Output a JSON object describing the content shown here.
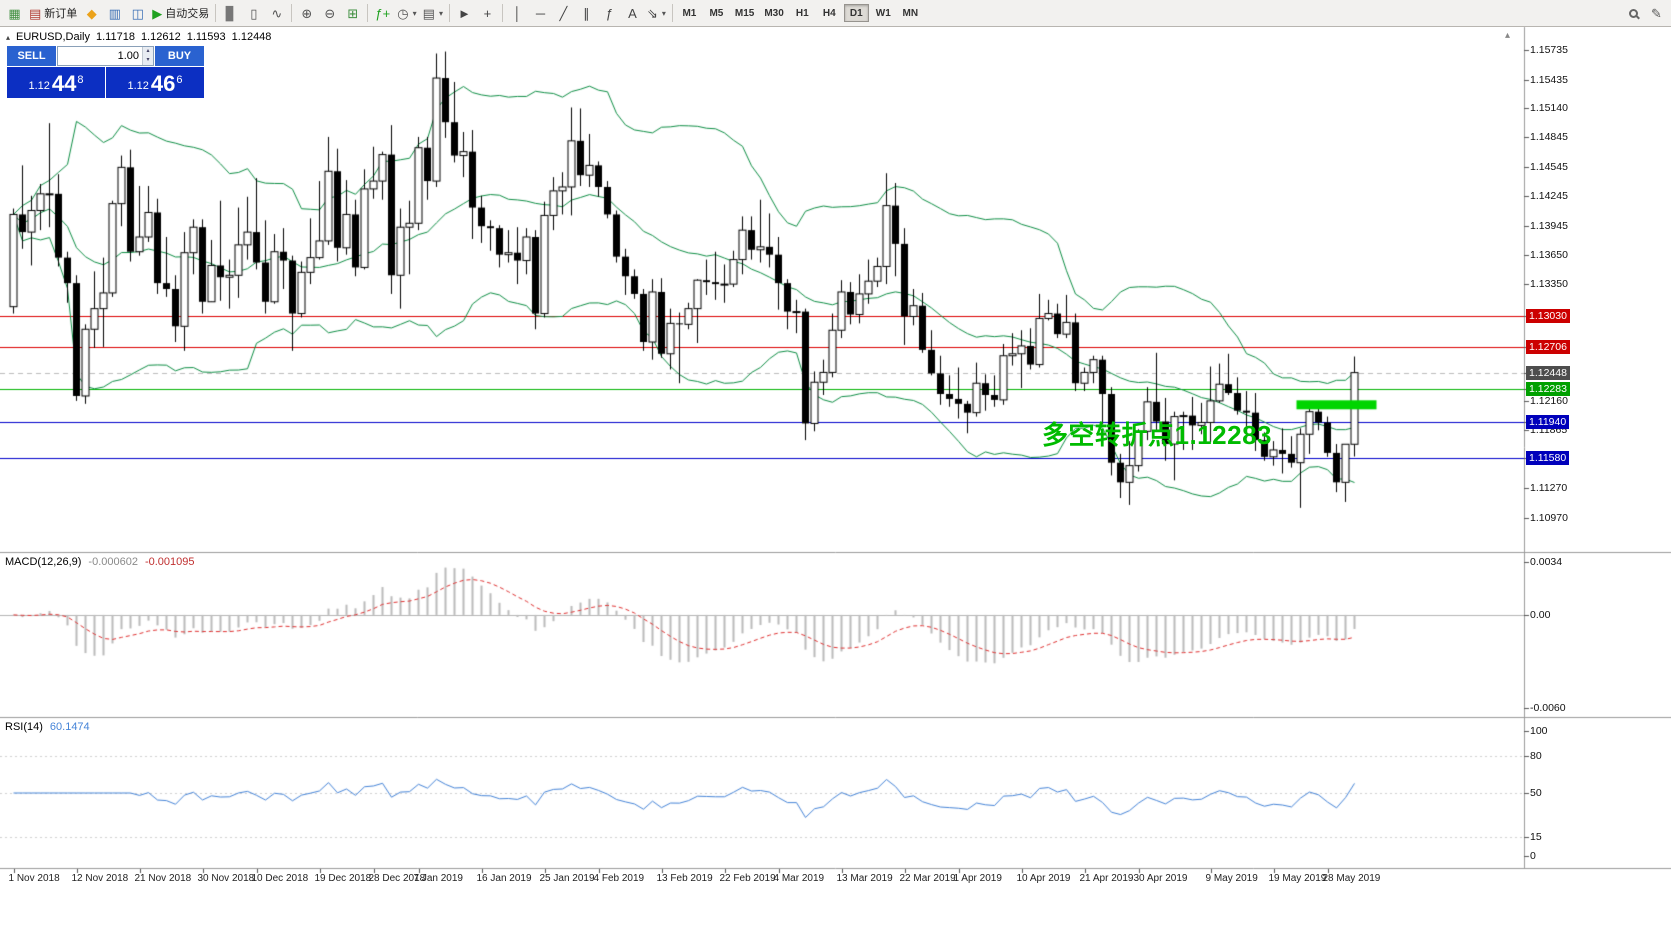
{
  "toolbar": {
    "items": [
      {
        "name": "chart-window-button",
        "glyph": "▦",
        "color": "#3f8f3f"
      },
      {
        "name": "new-order-button",
        "glyph": "▤",
        "color": "#b0392f",
        "label": "新订单"
      },
      {
        "name": "metaeditor-button",
        "glyph": "◆",
        "color": "#eba21a"
      },
      {
        "name": "market-watch-button",
        "glyph": "▥",
        "color": "#3a6fb5"
      },
      {
        "name": "navigator-button",
        "glyph": "◫",
        "color": "#3a6fb5"
      },
      {
        "name": "autotrading-button",
        "glyph": "▶",
        "color": "#1fa11f",
        "label": "自动交易"
      },
      {
        "sep": true
      },
      {
        "name": "bar-chart-button",
        "glyph": "▊",
        "color": "#777777"
      },
      {
        "name": "candlestick-chart-button",
        "glyph": "▯",
        "color": "#555555"
      },
      {
        "name": "line-chart-button",
        "glyph": "∿",
        "color": "#555555"
      },
      {
        "sep": true
      },
      {
        "name": "zoom-in-button",
        "glyph": "⊕",
        "color": "#555555"
      },
      {
        "name": "zoom-out-button",
        "glyph": "⊖",
        "color": "#555555"
      },
      {
        "name": "tile-windows-button",
        "glyph": "⊞",
        "color": "#3f8f3f"
      },
      {
        "sep": true
      },
      {
        "name": "indicators-button",
        "glyph": "ƒ+",
        "color": "#1fa11f"
      },
      {
        "name": "periods-button",
        "glyph": "◷",
        "color": "#555555",
        "caret": true
      },
      {
        "name": "templates-button",
        "glyph": "▤",
        "color": "#555555",
        "caret": true
      },
      {
        "sep": true
      },
      {
        "name": "cursor-button",
        "glyph": "►",
        "color": "#444444"
      },
      {
        "name": "crosshair-button",
        "glyph": "+",
        "color": "#444444"
      },
      {
        "sep": true
      },
      {
        "name": "vertical-line-button",
        "glyph": "│",
        "color": "#444444"
      },
      {
        "name": "horizontal-line-button",
        "glyph": "─",
        "color": "#444444"
      },
      {
        "name": "trendline-button",
        "glyph": "╱",
        "color": "#444444"
      },
      {
        "name": "channel-button",
        "glyph": "∥",
        "color": "#444444"
      },
      {
        "name": "fibonacci-button",
        "glyph": "ƒ",
        "color": "#444444"
      },
      {
        "name": "text-button",
        "glyph": "A",
        "color": "#444444"
      },
      {
        "name": "arrows-button",
        "glyph": "⇘",
        "color": "#444444",
        "caret": true
      },
      {
        "sep": true
      }
    ],
    "timeframes": [
      {
        "label": "M1"
      },
      {
        "label": "M5"
      },
      {
        "label": "M15"
      },
      {
        "label": "M30"
      },
      {
        "label": "H1"
      },
      {
        "label": "H4"
      },
      {
        "label": "D1",
        "active": true
      },
      {
        "label": "W1"
      },
      {
        "label": "MN"
      }
    ]
  },
  "chart": {
    "symbol_line": {
      "symbol": "EURUSD,Daily",
      "open": "1.11718",
      "high": "1.12612",
      "low": "1.11593",
      "close": "1.12448"
    },
    "trade_panel": {
      "sell_label": "SELL",
      "buy_label": "BUY",
      "volume": "1.00",
      "bid": {
        "base": "1.12",
        "big": "44",
        "sup": "8"
      },
      "ask": {
        "base": "1.12",
        "big": "46",
        "sup": "6"
      }
    },
    "annotation": {
      "text": "多空转折点1.12283",
      "color": "#00bb00"
    },
    "price_ticks": [
      "1.15735",
      "1.15435",
      "1.15140",
      "1.14845",
      "1.14545",
      "1.14245",
      "1.13945",
      "1.13650",
      "1.13350",
      "1.12160",
      "1.11865",
      "1.11270",
      "1.10970"
    ],
    "hlines": [
      {
        "price": 1.1303,
        "label": "1.13030",
        "line_color": "#dd0000",
        "box_color": "#cc0000"
      },
      {
        "price": 1.12706,
        "label": "1.12706",
        "line_color": "#dd0000",
        "box_color": "#cc0000"
      },
      {
        "price": 1.12448,
        "label": "1.12448",
        "line_color": "#bbbbbb",
        "box_color": "#4d4d4d",
        "dashed": true
      },
      {
        "price": 1.12283,
        "label": "1.12283",
        "line_color": "#00b300",
        "box_color": "#00a000"
      },
      {
        "price": 1.1194,
        "label": "1.11940",
        "line_color": "#0000cc",
        "box_color": "#0000bb"
      },
      {
        "price": 1.1158,
        "label": "1.11580",
        "line_color": "#0000cc",
        "box_color": "#0000bb"
      }
    ],
    "highlight_bar": {
      "price": 1.1212,
      "from_index": 143,
      "to_index": 151,
      "color": "#00d500",
      "thickness": 9
    }
  },
  "macd_panel": {
    "title": "MACD(12,26,9)",
    "value_main": "-0.000602",
    "value_signal": "-0.001095",
    "ticks": [
      {
        "v": 0.0034,
        "label": "0.0034"
      },
      {
        "v": 0,
        "label": "0.00"
      },
      {
        "v": -0.006,
        "label": "-0.0060"
      }
    ]
  },
  "rsi_panel": {
    "title": "RSI(14)",
    "value": "60.1474",
    "ticks": [
      {
        "v": 100,
        "label": "100"
      },
      {
        "v": 80,
        "label": "80"
      },
      {
        "v": 50,
        "label": "50"
      },
      {
        "v": 15,
        "label": "15"
      },
      {
        "v": 0,
        "label": "0"
      }
    ],
    "levels": [
      80,
      50,
      15
    ]
  },
  "date_axis": [
    {
      "i": 0,
      "label": "1 Nov 2018"
    },
    {
      "i": 7,
      "label": "12 Nov 2018"
    },
    {
      "i": 14,
      "label": "21 Nov 2018"
    },
    {
      "i": 21,
      "label": "30 Nov 2018"
    },
    {
      "i": 27,
      "label": "10 Dec 2018"
    },
    {
      "i": 34,
      "label": "19 Dec 2018"
    },
    {
      "i": 40,
      "label": "28 Dec 2018"
    },
    {
      "i": 45,
      "label": "7 Jan 2019"
    },
    {
      "i": 52,
      "label": "16 Jan 2019"
    },
    {
      "i": 59,
      "label": "25 Jan 2019"
    },
    {
      "i": 65,
      "label": "4 Feb 2019"
    },
    {
      "i": 72,
      "label": "13 Feb 2019"
    },
    {
      "i": 79,
      "label": "22 Feb 2019"
    },
    {
      "i": 85,
      "label": "4 Mar 2019"
    },
    {
      "i": 92,
      "label": "13 Mar 2019"
    },
    {
      "i": 99,
      "label": "22 Mar 2019"
    },
    {
      "i": 105,
      "label": "1 Apr 2019"
    },
    {
      "i": 112,
      "label": "10 Apr 2019"
    },
    {
      "i": 119,
      "label": "21 Apr 2019"
    },
    {
      "i": 125,
      "label": "30 Apr 2019"
    },
    {
      "i": 133,
      "label": "9 May 2019"
    },
    {
      "i": 140,
      "label": "19 May 2019"
    },
    {
      "i": 146,
      "label": "28 May 2019"
    }
  ],
  "chart_data": {
    "type": "candlestick",
    "symbol": "EURUSD",
    "timeframe": "Daily",
    "ohlc_current": {
      "open": 1.11718,
      "high": 1.12612,
      "low": 1.11593,
      "close": 1.12448
    },
    "indicators": [
      {
        "name": "Bollinger Bands",
        "period": 20,
        "deviation": 2,
        "color": "#0d8e44"
      },
      {
        "name": "MACD",
        "fast": 12,
        "slow": 26,
        "signal": 9,
        "main_value": -0.000602,
        "signal_value": -0.001095
      },
      {
        "name": "RSI",
        "period": 14,
        "value": 60.1474
      }
    ],
    "horizontal_levels": [
      1.1303,
      1.12706,
      1.12283,
      1.1194,
      1.1158
    ],
    "candles": [
      [
        1.1312,
        1.1412,
        1.1305,
        1.1406
      ],
      [
        1.1406,
        1.1456,
        1.1371,
        1.1388
      ],
      [
        1.1388,
        1.1425,
        1.1354,
        1.141
      ],
      [
        1.141,
        1.1437,
        1.139,
        1.1427
      ],
      [
        1.1427,
        1.1499,
        1.1393,
        1.1427
      ],
      [
        1.1427,
        1.1447,
        1.1353,
        1.1362
      ],
      [
        1.1362,
        1.1368,
        1.1316,
        1.1336
      ],
      [
        1.1336,
        1.1344,
        1.1216,
        1.1221
      ],
      [
        1.1221,
        1.1294,
        1.1213,
        1.1289
      ],
      [
        1.1289,
        1.1348,
        1.127,
        1.131
      ],
      [
        1.131,
        1.1362,
        1.1271,
        1.1326
      ],
      [
        1.1326,
        1.142,
        1.1322,
        1.1417
      ],
      [
        1.1417,
        1.1466,
        1.1394,
        1.1454
      ],
      [
        1.1454,
        1.1472,
        1.1358,
        1.1368
      ],
      [
        1.1368,
        1.1435,
        1.1364,
        1.1383
      ],
      [
        1.1383,
        1.1435,
        1.1378,
        1.1408
      ],
      [
        1.1408,
        1.1422,
        1.1325,
        1.1336
      ],
      [
        1.1336,
        1.1383,
        1.1322,
        1.133
      ],
      [
        1.133,
        1.1344,
        1.1276,
        1.1292
      ],
      [
        1.1292,
        1.1388,
        1.1267,
        1.1367
      ],
      [
        1.1367,
        1.1401,
        1.1345,
        1.1393
      ],
      [
        1.1393,
        1.1401,
        1.1305,
        1.1317
      ],
      [
        1.1317,
        1.138,
        1.1317,
        1.1354
      ],
      [
        1.1354,
        1.142,
        1.1318,
        1.1342
      ],
      [
        1.1342,
        1.136,
        1.131,
        1.1344
      ],
      [
        1.1344,
        1.1413,
        1.1321,
        1.1375
      ],
      [
        1.1375,
        1.1424,
        1.136,
        1.1388
      ],
      [
        1.1388,
        1.1443,
        1.135,
        1.1357
      ],
      [
        1.1357,
        1.14,
        1.1305,
        1.1317
      ],
      [
        1.1317,
        1.1386,
        1.1315,
        1.1368
      ],
      [
        1.1368,
        1.1392,
        1.133,
        1.1359
      ],
      [
        1.1359,
        1.1364,
        1.1267,
        1.1305
      ],
      [
        1.1305,
        1.1358,
        1.1301,
        1.1347
      ],
      [
        1.1347,
        1.1402,
        1.1335,
        1.1362
      ],
      [
        1.1362,
        1.144,
        1.136,
        1.1379
      ],
      [
        1.1379,
        1.1485,
        1.1375,
        1.145
      ],
      [
        1.145,
        1.1473,
        1.1358,
        1.1372
      ],
      [
        1.1372,
        1.1441,
        1.1365,
        1.1406
      ],
      [
        1.1406,
        1.1421,
        1.1343,
        1.1352
      ],
      [
        1.1352,
        1.1452,
        1.135,
        1.1432
      ],
      [
        1.1432,
        1.1475,
        1.1422,
        1.144
      ],
      [
        1.144,
        1.147,
        1.1421,
        1.1467
      ],
      [
        1.1467,
        1.1497,
        1.1325,
        1.1344
      ],
      [
        1.1344,
        1.1412,
        1.131,
        1.1393
      ],
      [
        1.1393,
        1.142,
        1.1345,
        1.1397
      ],
      [
        1.1397,
        1.1485,
        1.139,
        1.1474
      ],
      [
        1.1474,
        1.1485,
        1.1421,
        1.144
      ],
      [
        1.144,
        1.157,
        1.1434,
        1.1545
      ],
      [
        1.1545,
        1.1572,
        1.1484,
        1.15
      ],
      [
        1.15,
        1.1541,
        1.1459,
        1.1466
      ],
      [
        1.1466,
        1.149,
        1.1444,
        1.147
      ],
      [
        1.147,
        1.1492,
        1.1381,
        1.1413
      ],
      [
        1.1413,
        1.1425,
        1.1377,
        1.1394
      ],
      [
        1.1394,
        1.14,
        1.1369,
        1.1392
      ],
      [
        1.1392,
        1.1395,
        1.1352,
        1.1365
      ],
      [
        1.1365,
        1.139,
        1.1357,
        1.1367
      ],
      [
        1.1367,
        1.1393,
        1.1335,
        1.1359
      ],
      [
        1.1359,
        1.1392,
        1.1345,
        1.1383
      ],
      [
        1.1383,
        1.139,
        1.1289,
        1.1305
      ],
      [
        1.1305,
        1.1419,
        1.1301,
        1.1405
      ],
      [
        1.1405,
        1.1444,
        1.139,
        1.143
      ],
      [
        1.143,
        1.1449,
        1.1406,
        1.1434
      ],
      [
        1.1434,
        1.1515,
        1.1405,
        1.1481
      ],
      [
        1.1481,
        1.1514,
        1.1435,
        1.1446
      ],
      [
        1.1446,
        1.1488,
        1.1434,
        1.1456
      ],
      [
        1.1456,
        1.146,
        1.1424,
        1.1434
      ],
      [
        1.1434,
        1.144,
        1.1402,
        1.1406
      ],
      [
        1.1406,
        1.141,
        1.1357,
        1.1363
      ],
      [
        1.1363,
        1.1371,
        1.1324,
        1.1343
      ],
      [
        1.1343,
        1.135,
        1.132,
        1.1325
      ],
      [
        1.1325,
        1.133,
        1.1267,
        1.1276
      ],
      [
        1.1276,
        1.134,
        1.1258,
        1.1327
      ],
      [
        1.1327,
        1.1341,
        1.126,
        1.1264
      ],
      [
        1.1264,
        1.131,
        1.1248,
        1.1295
      ],
      [
        1.1295,
        1.1306,
        1.1234,
        1.1294
      ],
      [
        1.1294,
        1.1316,
        1.1289,
        1.131
      ],
      [
        1.131,
        1.134,
        1.1275,
        1.1339
      ],
      [
        1.1339,
        1.136,
        1.1324,
        1.1337
      ],
      [
        1.1337,
        1.1368,
        1.1319,
        1.1335
      ],
      [
        1.1335,
        1.1355,
        1.1316,
        1.1335
      ],
      [
        1.1335,
        1.1369,
        1.1332,
        1.136
      ],
      [
        1.136,
        1.1404,
        1.1345,
        1.139
      ],
      [
        1.139,
        1.1404,
        1.136,
        1.137
      ],
      [
        1.137,
        1.1421,
        1.1357,
        1.1373
      ],
      [
        1.1373,
        1.1407,
        1.1352,
        1.1365
      ],
      [
        1.1365,
        1.1383,
        1.1309,
        1.1336
      ],
      [
        1.1336,
        1.134,
        1.1289,
        1.1307
      ],
      [
        1.1307,
        1.1319,
        1.1285,
        1.1307
      ],
      [
        1.1307,
        1.131,
        1.1176,
        1.1193
      ],
      [
        1.1193,
        1.1246,
        1.1185,
        1.1235
      ],
      [
        1.1235,
        1.1258,
        1.1222,
        1.1245
      ],
      [
        1.1245,
        1.1305,
        1.124,
        1.1288
      ],
      [
        1.1288,
        1.1339,
        1.128,
        1.1327
      ],
      [
        1.1327,
        1.1337,
        1.1294,
        1.1304
      ],
      [
        1.1304,
        1.1345,
        1.1295,
        1.1325
      ],
      [
        1.1325,
        1.136,
        1.1315,
        1.1338
      ],
      [
        1.1338,
        1.1362,
        1.1332,
        1.1353
      ],
      [
        1.1353,
        1.1448,
        1.1335,
        1.1415
      ],
      [
        1.1415,
        1.1438,
        1.1343,
        1.1376
      ],
      [
        1.1376,
        1.1392,
        1.1273,
        1.1302
      ],
      [
        1.1302,
        1.133,
        1.1293,
        1.1313
      ],
      [
        1.1313,
        1.1326,
        1.1265,
        1.1268
      ],
      [
        1.1268,
        1.1288,
        1.1242,
        1.1244
      ],
      [
        1.1244,
        1.1262,
        1.1212,
        1.1223
      ],
      [
        1.1223,
        1.1242,
        1.121,
        1.1218
      ],
      [
        1.1218,
        1.125,
        1.1198,
        1.1213
      ],
      [
        1.1213,
        1.1216,
        1.1183,
        1.1204
      ],
      [
        1.1204,
        1.1255,
        1.12,
        1.1234
      ],
      [
        1.1234,
        1.1243,
        1.1206,
        1.1222
      ],
      [
        1.1222,
        1.1242,
        1.121,
        1.1217
      ],
      [
        1.1217,
        1.1274,
        1.1212,
        1.1262
      ],
      [
        1.1262,
        1.1285,
        1.1252,
        1.1264
      ],
      [
        1.1264,
        1.1288,
        1.1229,
        1.1272
      ],
      [
        1.1272,
        1.129,
        1.1248,
        1.1253
      ],
      [
        1.1253,
        1.1325,
        1.125,
        1.13
      ],
      [
        1.13,
        1.1319,
        1.1298,
        1.1305
      ],
      [
        1.1305,
        1.1315,
        1.128,
        1.1284
      ],
      [
        1.1284,
        1.1324,
        1.128,
        1.1296
      ],
      [
        1.1296,
        1.1305,
        1.1226,
        1.1234
      ],
      [
        1.1234,
        1.125,
        1.1226,
        1.1245
      ],
      [
        1.1245,
        1.1262,
        1.1234,
        1.1258
      ],
      [
        1.1258,
        1.1262,
        1.1192,
        1.1223
      ],
      [
        1.1223,
        1.123,
        1.114,
        1.1153
      ],
      [
        1.1153,
        1.1162,
        1.1117,
        1.1133
      ],
      [
        1.1133,
        1.1175,
        1.111,
        1.115
      ],
      [
        1.115,
        1.1187,
        1.1144,
        1.1185
      ],
      [
        1.1185,
        1.123,
        1.1176,
        1.1215
      ],
      [
        1.1215,
        1.1265,
        1.1186,
        1.1195
      ],
      [
        1.1195,
        1.1219,
        1.1155,
        1.1172
      ],
      [
        1.1172,
        1.1205,
        1.1135,
        1.12
      ],
      [
        1.12,
        1.1205,
        1.1166,
        1.1201
      ],
      [
        1.1201,
        1.122,
        1.1166,
        1.1191
      ],
      [
        1.1191,
        1.1214,
        1.1182,
        1.1194
      ],
      [
        1.1194,
        1.1251,
        1.1174,
        1.1216
      ],
      [
        1.1216,
        1.1254,
        1.1214,
        1.1233
      ],
      [
        1.1233,
        1.1264,
        1.1222,
        1.1224
      ],
      [
        1.1224,
        1.124,
        1.1202,
        1.1206
      ],
      [
        1.1206,
        1.1226,
        1.1178,
        1.1204
      ],
      [
        1.1204,
        1.1224,
        1.1165,
        1.1176
      ],
      [
        1.1176,
        1.1184,
        1.1155,
        1.1159
      ],
      [
        1.1159,
        1.1175,
        1.115,
        1.1166
      ],
      [
        1.1166,
        1.1188,
        1.1142,
        1.1162
      ],
      [
        1.1162,
        1.118,
        1.1148,
        1.1153
      ],
      [
        1.1153,
        1.1188,
        1.1107,
        1.1182
      ],
      [
        1.1182,
        1.1213,
        1.1162,
        1.1205
      ],
      [
        1.1205,
        1.1215,
        1.1186,
        1.1194
      ],
      [
        1.1194,
        1.12,
        1.1159,
        1.1163
      ],
      [
        1.1163,
        1.1172,
        1.1123,
        1.1133
      ],
      [
        1.1133,
        1.115,
        1.1113,
        1.11718
      ],
      [
        1.11718,
        1.12612,
        1.11593,
        1.12448
      ]
    ]
  }
}
